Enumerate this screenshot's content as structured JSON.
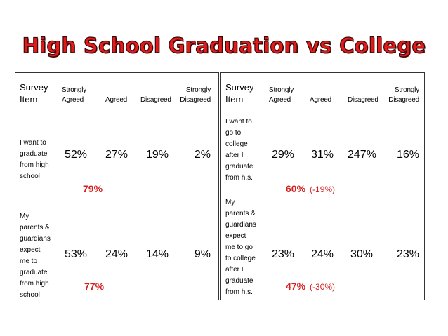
{
  "title": "High School Graduation vs College",
  "left": {
    "header": {
      "item_line1": "Survey",
      "item_line2": "Item",
      "strongly_agreed_1": "Strongly",
      "strongly_agreed_2": "Agreed",
      "agreed": "Agreed",
      "disagreed": "Disagreed",
      "strongly_disagreed_1": "Strongly",
      "strongly_disagreed_2": "Disagreed"
    },
    "rows": [
      {
        "label": [
          "I want to",
          "graduate",
          "from high",
          "school"
        ],
        "values": [
          "52%",
          "27%",
          "19%",
          "2%"
        ],
        "summary": "79%"
      },
      {
        "label": [
          "My",
          "parents &",
          "guardians",
          "expect",
          "me to",
          "graduate",
          "from high",
          "school"
        ],
        "values": [
          "53%",
          "24%",
          "14%",
          "9%"
        ],
        "summary": "77%"
      }
    ]
  },
  "right": {
    "header": {
      "item_line1": "Survey",
      "item_line2": "Item",
      "strongly_agreed_1": "Strongly",
      "strongly_agreed_2": "Agreed",
      "agreed": "Agreed",
      "disagreed": "Disagreed",
      "strongly_disagreed_1": "Strongly",
      "strongly_disagreed_2": "Disagreed"
    },
    "rows": [
      {
        "label": [
          "I want to",
          "go to",
          "college",
          "after I",
          "graduate",
          "from h.s."
        ],
        "values": [
          "29%",
          "31%",
          "247%",
          "16%"
        ],
        "summary": "60%",
        "delta": "(-19%)"
      },
      {
        "label": [
          "My",
          "parents &",
          "guardians",
          "expect",
          "me to go",
          "to college",
          "after I",
          "graduate",
          "from h.s."
        ],
        "values": [
          "23%",
          "24%",
          "30%",
          "23%"
        ],
        "summary": "47%",
        "delta": "(-30%)"
      }
    ]
  }
}
